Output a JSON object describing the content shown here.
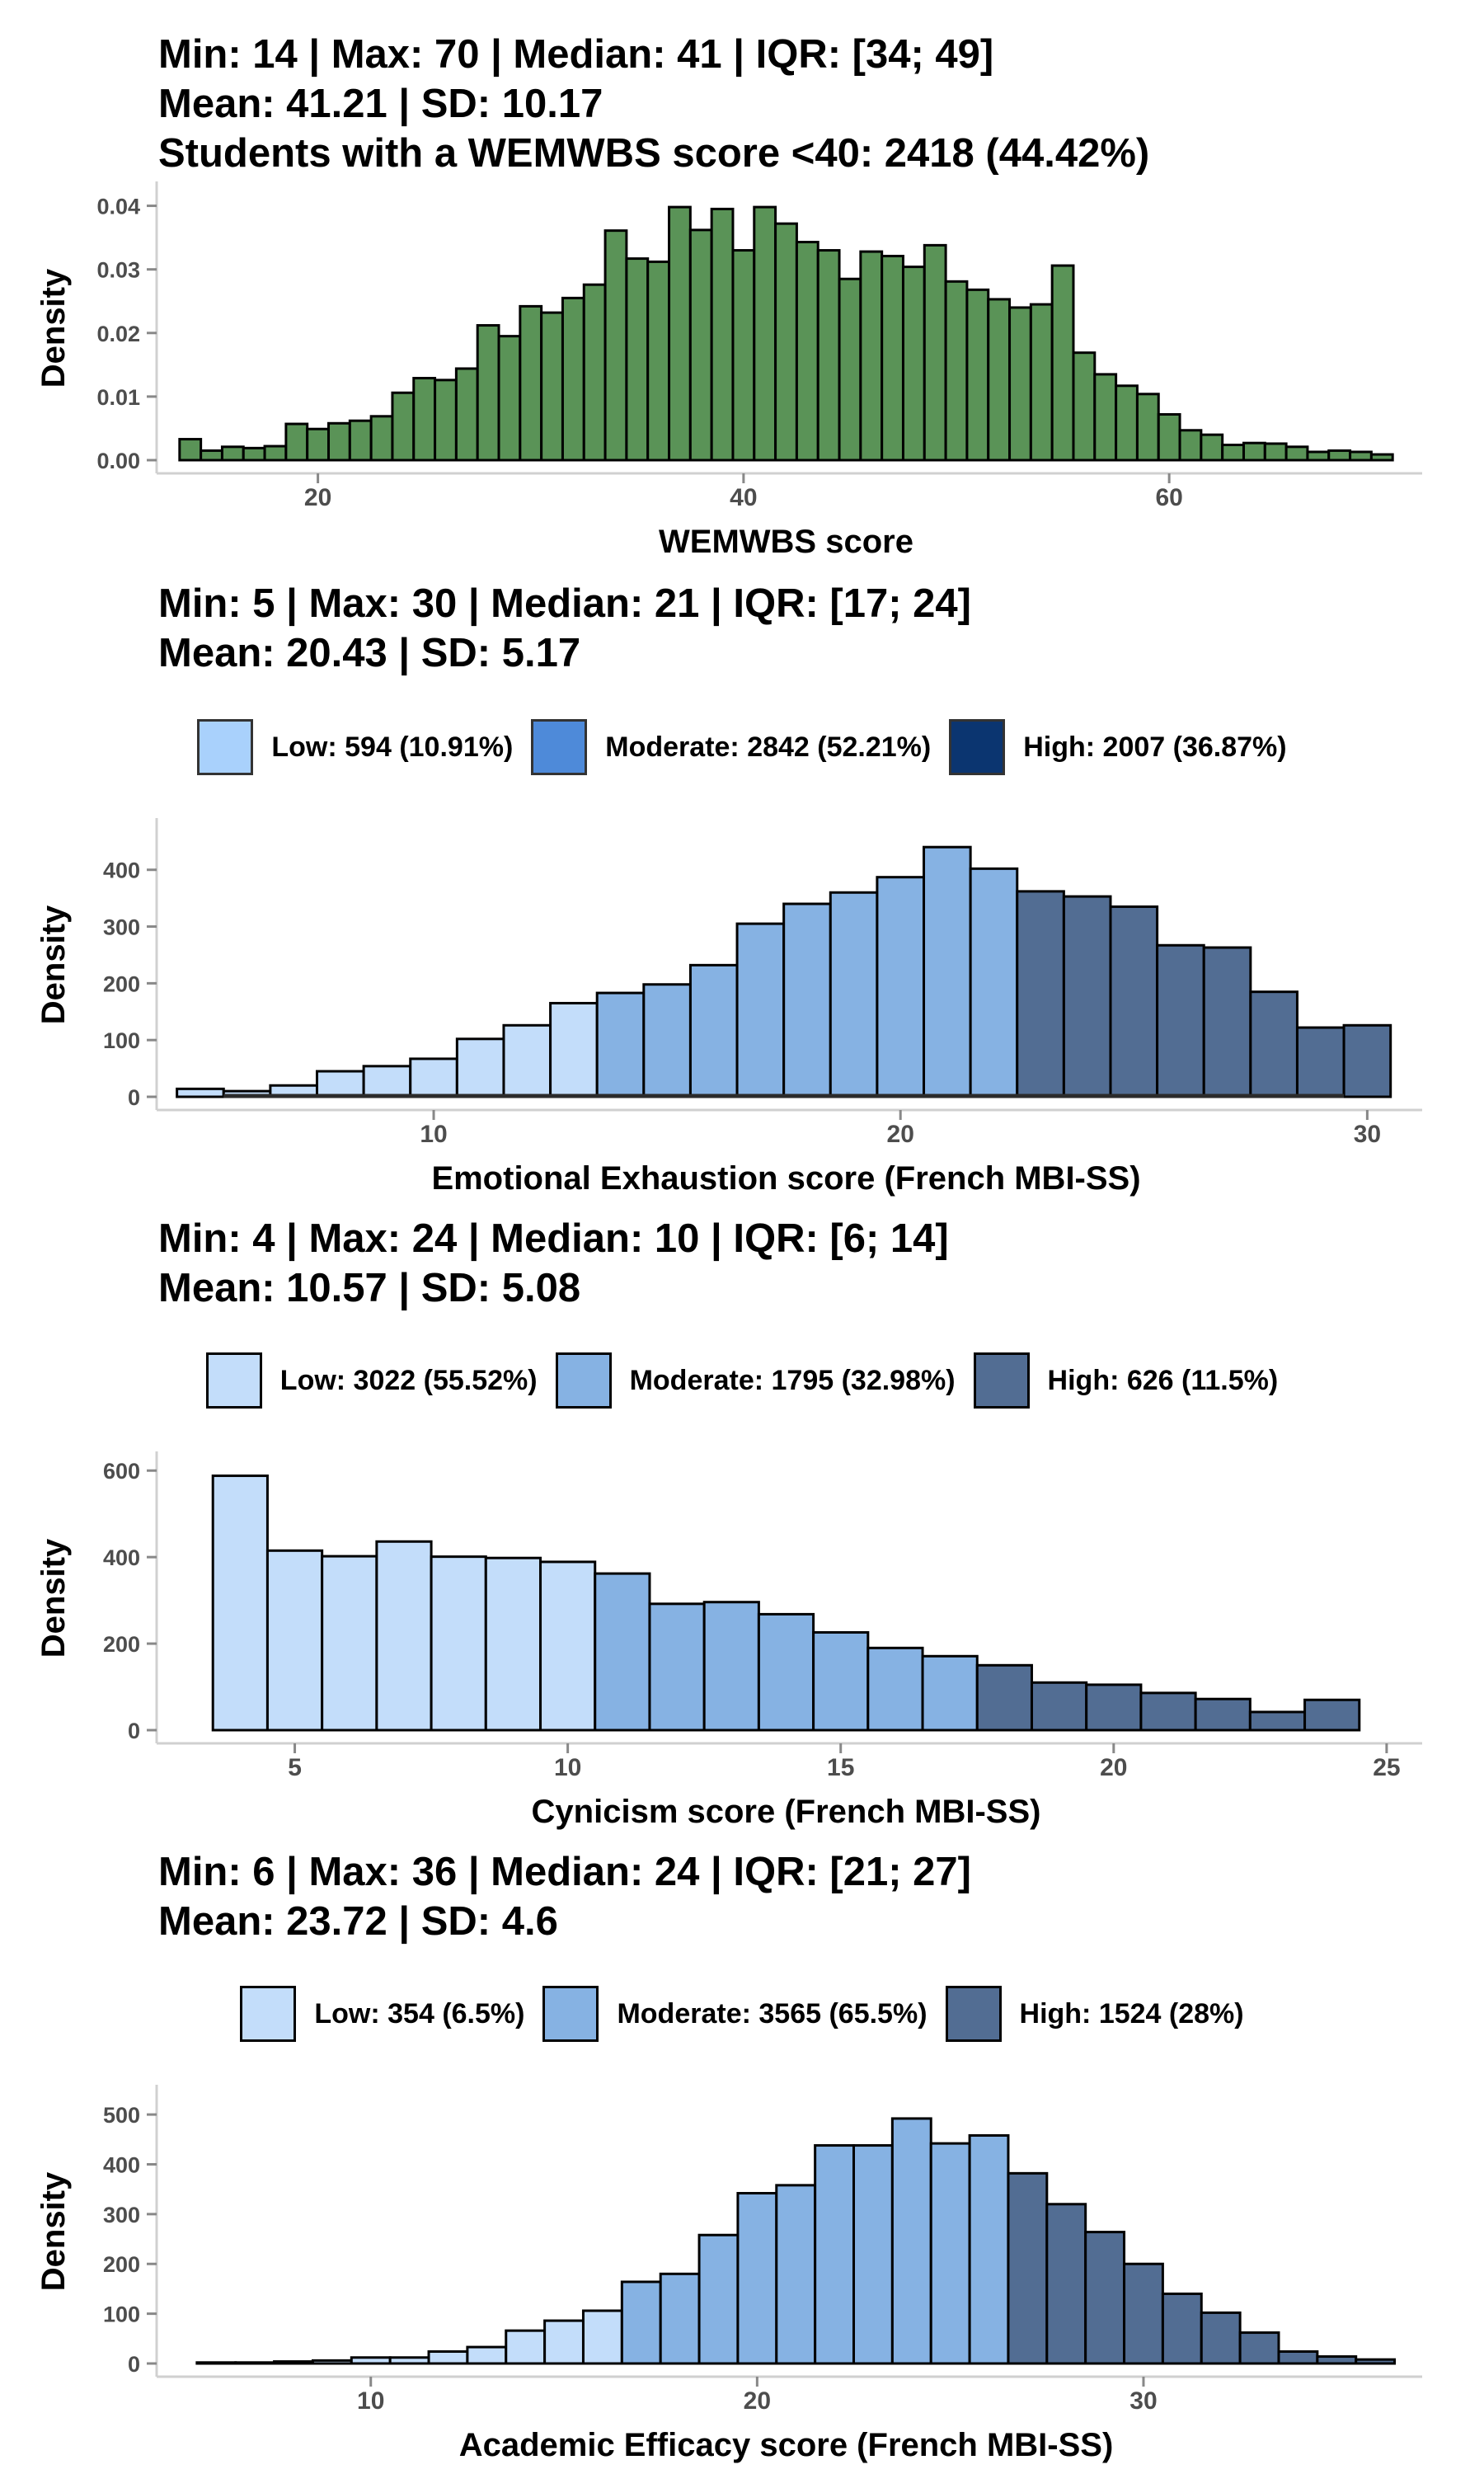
{
  "chart_data": [
    {
      "type": "bar",
      "title_lines": [
        "Min: 14 | Max: 70 | Median: 41 | IQR: [34; 49]",
        "Mean: 41.21 | SD: 10.17",
        "Students with a WEMWBS score <40: 2418 (44.42%)"
      ],
      "xlabel": "WEMWBS score",
      "ylabel": "Density",
      "xlim": [
        12.5,
        71.5
      ],
      "ylim": [
        0,
        0.0415
      ],
      "xticks": [
        20,
        40,
        60
      ],
      "yticks": [
        0,
        0.01,
        0.02,
        0.03,
        0.04
      ],
      "ytick_labels": [
        "0.00",
        "0.01",
        "0.02",
        "0.03",
        "0.04"
      ],
      "bin_width": 1,
      "fill": "#5a9357",
      "x": [
        14,
        15,
        16,
        17,
        18,
        19,
        20,
        21,
        22,
        23,
        24,
        25,
        26,
        27,
        28,
        29,
        30,
        31,
        32,
        33,
        34,
        35,
        36,
        37,
        38,
        39,
        40,
        41,
        42,
        43,
        44,
        45,
        46,
        47,
        48,
        49,
        50,
        51,
        52,
        53,
        54,
        55,
        56,
        57,
        58,
        59,
        60,
        61,
        62,
        63,
        64,
        65,
        66,
        67,
        68,
        69,
        70
      ],
      "values": [
        0.0033,
        0.0015,
        0.0021,
        0.0019,
        0.0022,
        0.0057,
        0.0049,
        0.0058,
        0.0062,
        0.0069,
        0.0106,
        0.0129,
        0.0126,
        0.0144,
        0.0212,
        0.0195,
        0.0242,
        0.0232,
        0.0255,
        0.0276,
        0.0361,
        0.0317,
        0.0312,
        0.0398,
        0.0362,
        0.0395,
        0.033,
        0.0398,
        0.0372,
        0.0343,
        0.033,
        0.0285,
        0.0328,
        0.0321,
        0.0304,
        0.0338,
        0.0281,
        0.0268,
        0.0253,
        0.024,
        0.0245,
        0.0306,
        0.0169,
        0.0135,
        0.0117,
        0.0104,
        0.0072,
        0.0047,
        0.004,
        0.0024,
        0.0027,
        0.0026,
        0.0021,
        0.0013,
        0.0015,
        0.0013,
        0.0009
      ]
    },
    {
      "type": "bar",
      "title_lines": [
        "Min: 5 | Max: 30 | Median: 21 | IQR: [17; 24]",
        "Mean: 20.43 | SD: 5.17"
      ],
      "legend": [
        {
          "label": "Low: 594 (10.91%)",
          "color": "#a9d1fc",
          "border": "#333333"
        },
        {
          "label": "Moderate: 2842 (52.21%)",
          "color": "#4e8ad9",
          "border": "#333333"
        },
        {
          "label": "High: 2007 (36.87%)",
          "color": "#0b3570",
          "border": "#333333"
        }
      ],
      "xlabel": "Emotional Exhaustion score (French MBI-SS)",
      "ylabel": "Density",
      "xlim": [
        4.1,
        31.0
      ],
      "ylim": [
        0,
        465
      ],
      "xticks": [
        10,
        20,
        30
      ],
      "yticks": [
        0,
        100,
        200,
        300,
        400
      ],
      "bin_width": 1,
      "x": [
        5,
        6,
        7,
        8,
        9,
        10,
        11,
        12,
        13,
        14,
        15,
        16,
        17,
        18,
        19,
        20,
        21,
        22,
        23,
        24,
        25,
        26,
        27,
        28,
        29,
        30
      ],
      "values": [
        14,
        10,
        20,
        45,
        54,
        67,
        102,
        126,
        165,
        183,
        198,
        232,
        305,
        340,
        360,
        387,
        440,
        402,
        362,
        353,
        335,
        267,
        263,
        185,
        122,
        126
      ],
      "categories": [
        "low",
        "low",
        "low",
        "low",
        "low",
        "low",
        "low",
        "low",
        "low",
        "mod",
        "mod",
        "mod",
        "mod",
        "mod",
        "mod",
        "mod",
        "mod",
        "mod",
        "high",
        "high",
        "high",
        "high",
        "high",
        "high",
        "high",
        "high"
      ],
      "colors": {
        "low": "#c3ddfa",
        "mod": "#86b2e3",
        "high": "#526d93"
      },
      "baseline_segment": [
        5.5,
        29.5
      ]
    },
    {
      "type": "bar",
      "title_lines": [
        "Min: 4 | Max: 24 | Median: 10 | IQR: [6; 14]",
        "Mean: 10.57 | SD: 5.08"
      ],
      "legend": [
        {
          "label": "Low: 3022 (55.52%)",
          "color": "#c3ddfa",
          "border": "#000000"
        },
        {
          "label": "Moderate: 1795 (32.98%)",
          "color": "#86b2e3",
          "border": "#000000"
        },
        {
          "label": "High: 626 (11.5%)",
          "color": "#526d93",
          "border": "#000000"
        }
      ],
      "xlabel": "Cynicism score (French MBI-SS)",
      "ylabel": "Density",
      "xlim": [
        2.5,
        25.5
      ],
      "ylim": [
        0,
        610
      ],
      "xticks": [
        5,
        10,
        15,
        20,
        25
      ],
      "yticks": [
        0,
        200,
        400,
        600
      ],
      "bin_width": 1,
      "x": [
        4,
        5,
        6,
        7,
        8,
        9,
        10,
        11,
        12,
        13,
        14,
        15,
        16,
        17,
        18,
        19,
        20,
        21,
        22,
        23,
        24
      ],
      "values": [
        588,
        415,
        402,
        436,
        401,
        398,
        389,
        362,
        292,
        296,
        268,
        226,
        190,
        171,
        150,
        110,
        105,
        86,
        72,
        42,
        70
      ],
      "categories": [
        "low",
        "low",
        "low",
        "low",
        "low",
        "low",
        "low",
        "mod",
        "mod",
        "mod",
        "mod",
        "mod",
        "mod",
        "mod",
        "high",
        "high",
        "high",
        "high",
        "high",
        "high",
        "high"
      ],
      "colors": {
        "low": "#c3ddfa",
        "mod": "#86b2e3",
        "high": "#526d93"
      }
    },
    {
      "type": "bar",
      "title_lines": [
        "Min: 6 | Max: 36 | Median: 24 | IQR: [21; 27]",
        "Mean: 23.72 | SD: 4.6"
      ],
      "legend": [
        {
          "label": "Low: 354 (6.5%)",
          "color": "#c3ddfa",
          "border": "#000000"
        },
        {
          "label": "Moderate: 3565 (65.5%)",
          "color": "#86b2e3",
          "border": "#000000"
        },
        {
          "label": "High: 1524 (28%)",
          "color": "#526d93",
          "border": "#000000"
        }
      ],
      "xlabel": "Academic Efficacy score (French MBI-SS)",
      "ylabel": "Density",
      "xlim": [
        4.5,
        37.0
      ],
      "ylim": [
        0,
        530
      ],
      "xticks": [
        10,
        20,
        30
      ],
      "yticks": [
        0,
        100,
        200,
        300,
        400,
        500
      ],
      "bin_width": 1,
      "x": [
        6,
        7,
        8,
        9,
        10,
        11,
        12,
        13,
        14,
        15,
        16,
        17,
        18,
        19,
        20,
        21,
        22,
        23,
        24,
        25,
        26,
        27,
        28,
        29,
        30,
        31,
        32,
        33,
        34,
        35,
        36
      ],
      "values": [
        2,
        2,
        4,
        6,
        12,
        12,
        24,
        33,
        66,
        86,
        106,
        164,
        180,
        258,
        342,
        358,
        438,
        438,
        492,
        442,
        458,
        382,
        320,
        264,
        200,
        140,
        102,
        62,
        24,
        14,
        8
      ],
      "categories": [
        "low",
        "low",
        "low",
        "low",
        "low",
        "low",
        "low",
        "low",
        "low",
        "low",
        "low",
        "mod",
        "mod",
        "mod",
        "mod",
        "mod",
        "mod",
        "mod",
        "mod",
        "mod",
        "mod",
        "high",
        "high",
        "high",
        "high",
        "high",
        "high",
        "high",
        "high",
        "high",
        "high"
      ],
      "colors": {
        "low": "#c3ddfa",
        "mod": "#86b2e3",
        "high": "#526d93"
      }
    }
  ]
}
